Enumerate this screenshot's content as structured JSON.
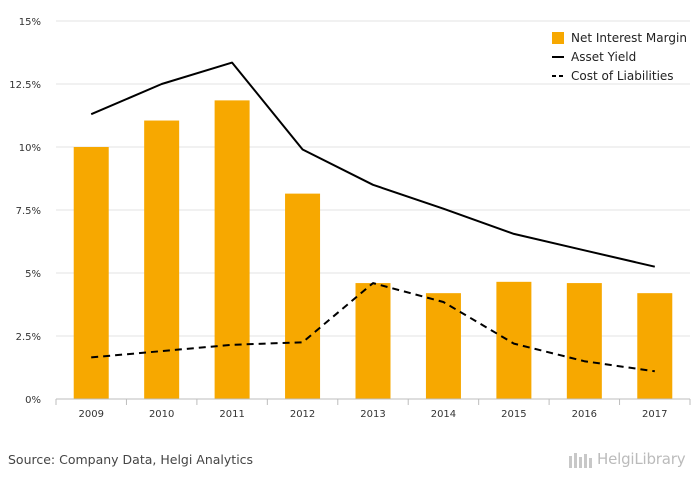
{
  "chart_data": {
    "type": "bar",
    "categories": [
      "2009",
      "2010",
      "2011",
      "2012",
      "2013",
      "2014",
      "2015",
      "2016",
      "2017"
    ],
    "ylim": [
      0,
      15
    ],
    "y_ticks": [
      "0%",
      "2.5%",
      "5%",
      "7.5%",
      "10%",
      "12.5%",
      "15%"
    ],
    "y_tick_values": [
      0,
      2.5,
      5,
      7.5,
      10,
      12.5,
      15
    ],
    "grid": true,
    "legend_position": "top-right",
    "series": [
      {
        "name": "Net Interest Margin",
        "kind": "bar",
        "color": "#F7A800",
        "values": [
          10.0,
          11.05,
          11.85,
          8.15,
          4.6,
          4.2,
          4.65,
          4.6,
          4.2
        ]
      },
      {
        "name": "Asset Yield",
        "kind": "line",
        "style": "solid",
        "color": "#000000",
        "values": [
          11.3,
          12.5,
          13.35,
          9.9,
          8.5,
          7.55,
          6.55,
          5.9,
          5.25
        ]
      },
      {
        "name": "Cost of Liabilities",
        "kind": "line",
        "style": "dashed",
        "color": "#000000",
        "values": [
          1.65,
          1.9,
          2.15,
          2.25,
          4.6,
          3.85,
          2.2,
          1.5,
          1.1
        ]
      }
    ]
  },
  "footer": {
    "source": "Source: Company Data, Helgi Analytics",
    "brand": "HelgiLibrary"
  }
}
